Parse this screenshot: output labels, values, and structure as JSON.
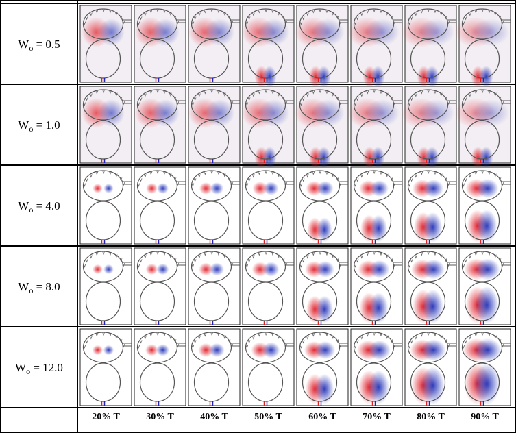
{
  "rows": [
    {
      "symbol": "W",
      "subscript": "o",
      "value": " = 0.5"
    },
    {
      "symbol": "W",
      "subscript": "o",
      "value": " = 1.0"
    },
    {
      "symbol": "W",
      "subscript": "o",
      "value": " = 4.0"
    },
    {
      "symbol": "W",
      "subscript": "o",
      "value": " = 8.0"
    },
    {
      "symbol": "W",
      "subscript": "o",
      "value": " = 12.0"
    }
  ],
  "columns": [
    "20% T",
    "30% T",
    "40% T",
    "50% T",
    "60% T",
    "70% T",
    "80% T",
    "90% T"
  ]
}
